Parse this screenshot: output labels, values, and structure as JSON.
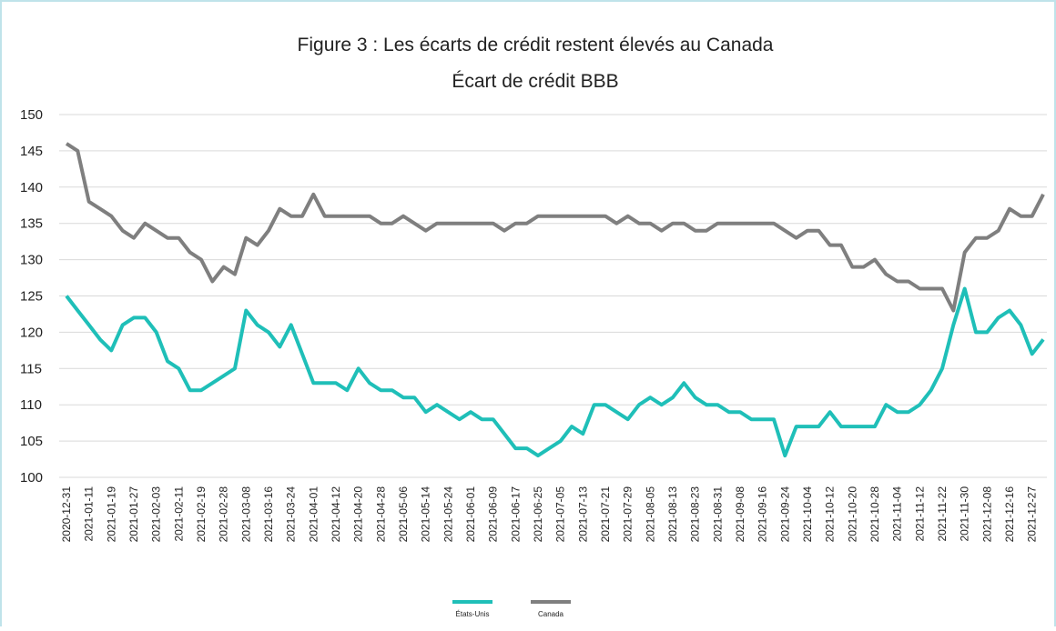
{
  "chart_data": {
    "type": "line",
    "title": "Figure 3 : Les écarts de crédit restent élevés au Canada",
    "subtitle": "Écart de crédit BBB",
    "categories": [
      "2020-12-31",
      null,
      "2021-01-11",
      null,
      "2021-01-19",
      null,
      "2021-01-27",
      null,
      "2021-02-03",
      null,
      "2021-02-11",
      null,
      "2021-02-19",
      null,
      "2021-02-28",
      null,
      "2021-03-08",
      null,
      "2021-03-16",
      null,
      "2021-03-24",
      null,
      "2021-04-01",
      null,
      "2021-04-12",
      null,
      "2021-04-20",
      null,
      "2021-04-28",
      null,
      "2021-05-06",
      null,
      "2021-05-14",
      null,
      "2021-05-24",
      null,
      "2021-06-01",
      null,
      "2021-06-09",
      null,
      "2021-06-17",
      null,
      "2021-06-25",
      null,
      "2021-07-05",
      null,
      "2021-07-13",
      null,
      "2021-07-21",
      null,
      "2021-07-29",
      null,
      "2021-08-05",
      null,
      "2021-08-13",
      null,
      "2021-08-23",
      null,
      "2021-08-31",
      null,
      "2021-09-08",
      null,
      "2021-09-16",
      null,
      "2021-09-24",
      null,
      "2021-10-04",
      null,
      "2021-10-12",
      null,
      "2021-10-20",
      null,
      "2021-10-28",
      null,
      "2021-11-04",
      null,
      "2021-11-12",
      null,
      "2021-11-22",
      null,
      "2021-11-30",
      null,
      "2021-12-08",
      null,
      "2021-12-16",
      null,
      "2021-12-27",
      null
    ],
    "series": [
      {
        "name": "États-Unis",
        "color": "#1fbfb8",
        "values": [
          125,
          123,
          121,
          119,
          117.5,
          121,
          122,
          122,
          120,
          116,
          115,
          112,
          112,
          113,
          114,
          115,
          123,
          121,
          120,
          118,
          121,
          117,
          113,
          113,
          113,
          112,
          115,
          113,
          112,
          112,
          111,
          111,
          109,
          110,
          109,
          108,
          109,
          108,
          108,
          106,
          104,
          104,
          103,
          104,
          105,
          107,
          106,
          110,
          110,
          109,
          108,
          110,
          111,
          110,
          111,
          113,
          111,
          110,
          110,
          109,
          109,
          108,
          108,
          108,
          103,
          107,
          107,
          107,
          109,
          107,
          107,
          107,
          107,
          110,
          109,
          109,
          110,
          112,
          115,
          121,
          126,
          120,
          120,
          122,
          123,
          121,
          117,
          119
        ]
      },
      {
        "name": "Canada",
        "color": "#7f7f7f",
        "values": [
          146,
          145,
          138,
          137,
          136,
          134,
          133,
          135,
          134,
          133,
          133,
          131,
          130,
          127,
          129,
          128,
          133,
          132,
          134,
          137,
          136,
          136,
          139,
          136,
          136,
          136,
          136,
          136,
          135,
          135,
          136,
          135,
          134,
          135,
          135,
          135,
          135,
          135,
          135,
          134,
          135,
          135,
          136,
          136,
          136,
          136,
          136,
          136,
          136,
          135,
          136,
          135,
          135,
          134,
          135,
          135,
          134,
          134,
          135,
          135,
          135,
          135,
          135,
          135,
          134,
          133,
          134,
          134,
          132,
          132,
          129,
          129,
          130,
          128,
          127,
          127,
          126,
          126,
          126,
          123,
          131,
          133,
          133,
          134,
          137,
          136,
          136,
          139
        ]
      }
    ],
    "ylim": [
      100,
      150
    ],
    "yticks": [
      100,
      105,
      110,
      115,
      120,
      125,
      130,
      135,
      140,
      145,
      150
    ],
    "grid": true,
    "legend": "bottom"
  }
}
